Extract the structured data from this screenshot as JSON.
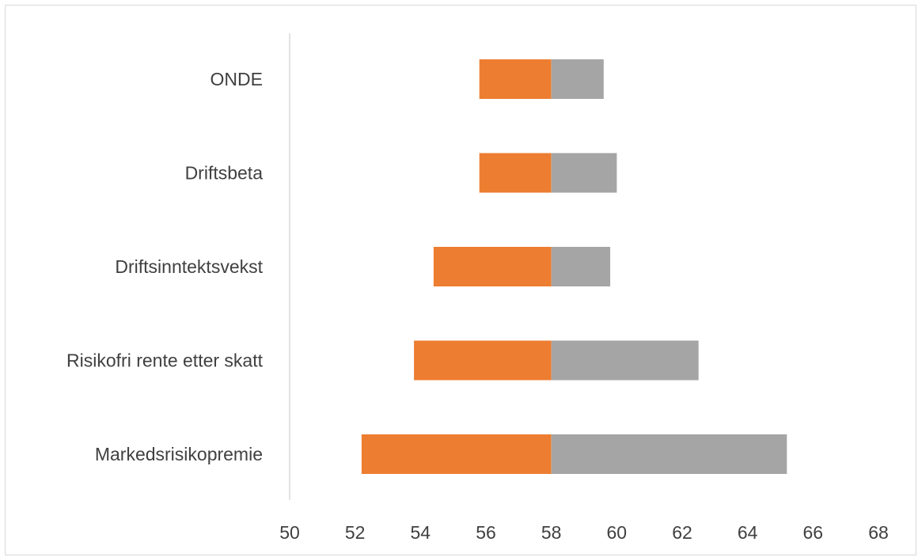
{
  "chart_data": {
    "type": "bar",
    "orientation": "horizontal",
    "title": "",
    "xlabel": "",
    "ylabel": "",
    "xlim": [
      50,
      68
    ],
    "x_ticks": [
      "50",
      "52",
      "54",
      "56",
      "58",
      "60",
      "62",
      "64",
      "66",
      "68"
    ],
    "base_value": 58,
    "categories": [
      "ONDE",
      "Driftsbeta",
      "Driftsinntektsvekst",
      "Risikofri rente etter skatt",
      "Markedsrisikopremie"
    ],
    "series": [
      {
        "color": "#ED7D31",
        "values": [
          55.8,
          55.8,
          54.4,
          53.8,
          52.2
        ]
      },
      {
        "color": "#A5A5A5",
        "values": [
          59.6,
          60.0,
          59.8,
          62.5,
          65.2
        ]
      }
    ],
    "grid": false,
    "legend": "none"
  }
}
